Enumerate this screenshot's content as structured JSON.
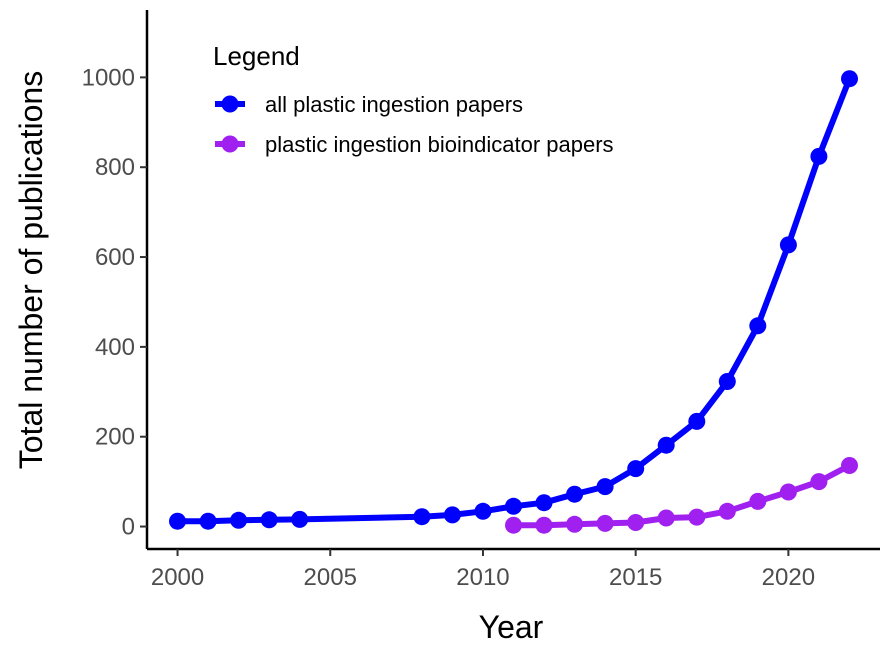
{
  "chart_data": {
    "type": "line",
    "xlabel": "Year",
    "ylabel": "Total number of publications",
    "xlim": [
      1999,
      2023
    ],
    "ylim": [
      -50,
      1150
    ],
    "xticks": [
      2000,
      2005,
      2010,
      2015,
      2020
    ],
    "yticks": [
      0,
      200,
      400,
      600,
      800,
      1000
    ],
    "grid": false,
    "legend": {
      "title": "Legend",
      "position": "top-left"
    },
    "series": [
      {
        "name": "all plastic ingestion papers",
        "color": "#0000ff",
        "x": [
          2000,
          2001,
          2002,
          2003,
          2004,
          2008,
          2009,
          2010,
          2011,
          2012,
          2013,
          2014,
          2015,
          2016,
          2017,
          2018,
          2019,
          2020,
          2021,
          2022
        ],
        "y": [
          12,
          12,
          14,
          15,
          16,
          22,
          26,
          34,
          45,
          53,
          72,
          89,
          129,
          181,
          234,
          323,
          447,
          627,
          824,
          997
        ]
      },
      {
        "name": "plastic ingestion bioindicator papers",
        "color": "#a020f0",
        "x": [
          2011,
          2012,
          2013,
          2014,
          2015,
          2016,
          2017,
          2018,
          2019,
          2020,
          2021,
          2022
        ],
        "y": [
          3,
          3,
          5,
          7,
          9,
          19,
          21,
          34,
          56,
          77,
          100,
          136
        ]
      }
    ]
  }
}
